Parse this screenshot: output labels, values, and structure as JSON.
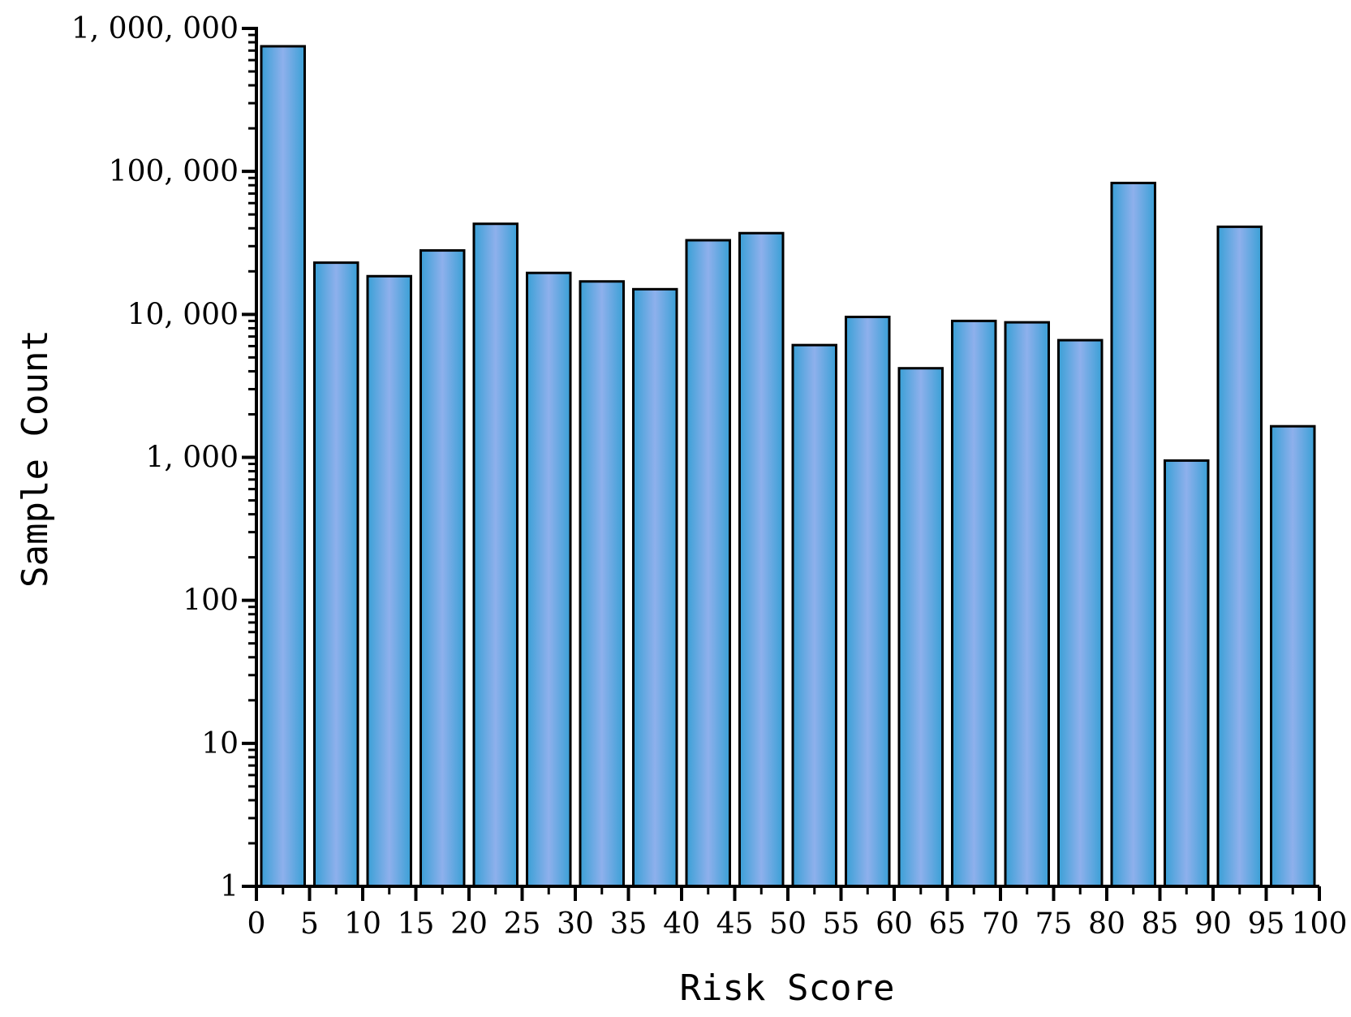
{
  "chart_data": {
    "type": "bar",
    "title": "",
    "xlabel": "Risk Score",
    "ylabel": "Sample Count",
    "y_scale": "log",
    "ylim": [
      1,
      1000000
    ],
    "xlim": [
      0,
      100
    ],
    "grid": false,
    "colors": {
      "bar_fill": "#8eb0ec",
      "bar_edge": "#3aa0d6",
      "outline": "#000000"
    },
    "x_ticks": [
      {
        "value": 0,
        "label": "0"
      },
      {
        "value": 5,
        "label": "5"
      },
      {
        "value": 10,
        "label": "10"
      },
      {
        "value": 15,
        "label": "15"
      },
      {
        "value": 20,
        "label": "20"
      },
      {
        "value": 25,
        "label": "25"
      },
      {
        "value": 30,
        "label": "30"
      },
      {
        "value": 35,
        "label": "35"
      },
      {
        "value": 40,
        "label": "40"
      },
      {
        "value": 45,
        "label": "45"
      },
      {
        "value": 50,
        "label": "50"
      },
      {
        "value": 55,
        "label": "55"
      },
      {
        "value": 60,
        "label": "60"
      },
      {
        "value": 65,
        "label": "65"
      },
      {
        "value": 70,
        "label": "70"
      },
      {
        "value": 75,
        "label": "75"
      },
      {
        "value": 80,
        "label": "80"
      },
      {
        "value": 85,
        "label": "85"
      },
      {
        "value": 90,
        "label": "90"
      },
      {
        "value": 95,
        "label": "95"
      },
      {
        "value": 100,
        "label": "100"
      }
    ],
    "y_ticks": [
      {
        "value": 1,
        "label": "1"
      },
      {
        "value": 10,
        "label": "10"
      },
      {
        "value": 100,
        "label": "100"
      },
      {
        "value": 1000,
        "label": "1, 000"
      },
      {
        "value": 10000,
        "label": "10, 000"
      },
      {
        "value": 100000,
        "label": "100, 000"
      },
      {
        "value": 1000000,
        "label": "1, 000, 000"
      }
    ],
    "bars": [
      {
        "x_start": 0,
        "x_end": 5,
        "value": 750000
      },
      {
        "x_start": 5,
        "x_end": 10,
        "value": 23000
      },
      {
        "x_start": 10,
        "x_end": 15,
        "value": 18500
      },
      {
        "x_start": 15,
        "x_end": 20,
        "value": 28000
      },
      {
        "x_start": 20,
        "x_end": 25,
        "value": 43000
      },
      {
        "x_start": 25,
        "x_end": 30,
        "value": 19500
      },
      {
        "x_start": 30,
        "x_end": 35,
        "value": 17000
      },
      {
        "x_start": 35,
        "x_end": 40,
        "value": 15000
      },
      {
        "x_start": 40,
        "x_end": 45,
        "value": 33000
      },
      {
        "x_start": 45,
        "x_end": 50,
        "value": 37000
      },
      {
        "x_start": 50,
        "x_end": 55,
        "value": 6100
      },
      {
        "x_start": 55,
        "x_end": 60,
        "value": 9600
      },
      {
        "x_start": 60,
        "x_end": 65,
        "value": 4200
      },
      {
        "x_start": 65,
        "x_end": 70,
        "value": 9000
      },
      {
        "x_start": 70,
        "x_end": 75,
        "value": 8800
      },
      {
        "x_start": 75,
        "x_end": 80,
        "value": 6600
      },
      {
        "x_start": 80,
        "x_end": 85,
        "value": 83000
      },
      {
        "x_start": 85,
        "x_end": 90,
        "value": 950
      },
      {
        "x_start": 90,
        "x_end": 95,
        "value": 41000
      },
      {
        "x_start": 95,
        "x_end": 100,
        "value": 1650
      }
    ]
  }
}
